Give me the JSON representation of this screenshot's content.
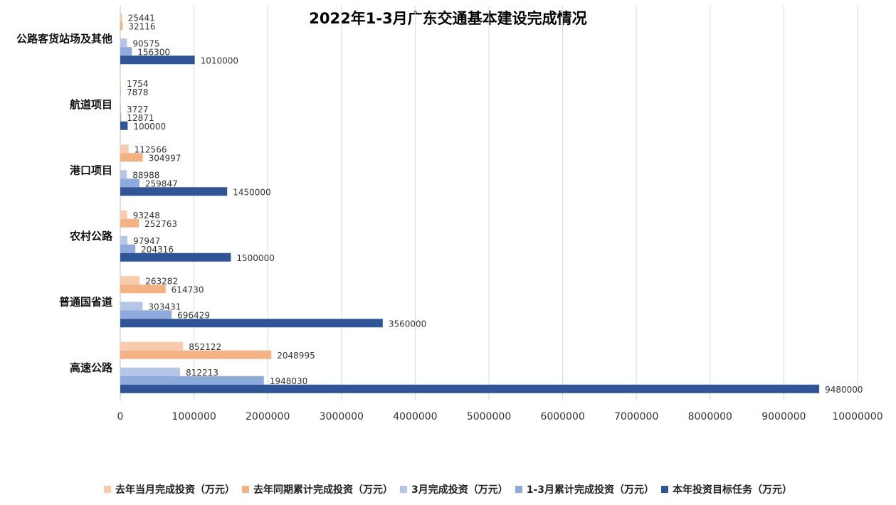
{
  "chart_data": {
    "type": "bar",
    "orientation": "horizontal",
    "title": "2022年1-3月广东交通基本建设完成情况",
    "categories": [
      "高速公路",
      "普通国省道",
      "农村公路",
      "港口项目",
      "航道项目",
      "公路客货站场及其他"
    ],
    "series": [
      {
        "name": "去年当月完成投资（万元）",
        "color": "#F8CBAD",
        "values": [
          852122,
          263282,
          93248,
          112566,
          1754,
          25441
        ]
      },
      {
        "name": "去年同期累计完成投资（万元）",
        "color": "#F4B183",
        "values": [
          2048995,
          614730,
          252763,
          304997,
          7878,
          32116
        ]
      },
      {
        "name": "3月完成投资（万元）",
        "color": "#B4C7E7",
        "values": [
          812213,
          303431,
          97947,
          88988,
          3727,
          90575
        ]
      },
      {
        "name": "1-3月累计完成投资（万元）",
        "color": "#8FAADC",
        "values": [
          1948030,
          696429,
          204316,
          259847,
          12871,
          156300
        ]
      },
      {
        "name": "本年投资目标任务（万元）",
        "color": "#2F5597",
        "values": [
          9480000,
          3560000,
          1500000,
          1450000,
          100000,
          1010000
        ]
      }
    ],
    "xlim": [
      0,
      10000000
    ],
    "xticks": [
      "0",
      "1000000",
      "2000000",
      "3000000",
      "4000000",
      "5000000",
      "6000000",
      "7000000",
      "8000000",
      "9000000",
      "10000000"
    ],
    "grid": true,
    "legend_position": "bottom"
  }
}
